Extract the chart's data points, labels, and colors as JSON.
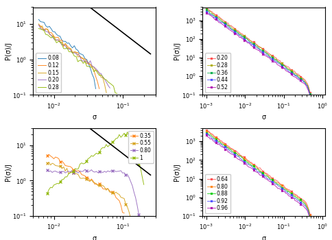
{
  "panel_tl": {
    "legend_labels": [
      "0.08",
      "0.12",
      "0.15",
      "0.20",
      "0.28"
    ],
    "colors": [
      "#1f77b4",
      "#ff7f0e",
      "#d4a017",
      "#9467bd",
      "#8db600"
    ],
    "xlim": [
      0.005,
      0.3
    ],
    "ylim": [
      0.1,
      30
    ],
    "xlabel": "σ",
    "ylabel": "P(σ)/J"
  },
  "panel_tr": {
    "legend_labels": [
      "0.20",
      "0.28",
      "0.36",
      "0.44",
      "0.52"
    ],
    "colors": [
      "#ff4444",
      "#aaaa00",
      "#00aa44",
      "#4444ff",
      "#aa00aa"
    ],
    "xlim": [
      0.0008,
      1.2
    ],
    "ylim": [
      0.1,
      5000
    ],
    "xlabel": "σ",
    "ylabel": "P(σ)/J"
  },
  "panel_bl": {
    "legend_labels": [
      "0.35",
      "0.55",
      "0.80",
      "1"
    ],
    "colors": [
      "#ff7f0e",
      "#d4a017",
      "#9467bd",
      "#8db600"
    ],
    "xlim": [
      0.005,
      0.3
    ],
    "ylim": [
      0.1,
      30
    ],
    "xlabel": "σ",
    "ylabel": "P(σ)/J"
  },
  "panel_br": {
    "legend_labels": [
      "0.64",
      "0.80",
      "0.88",
      "0.92",
      "0.96"
    ],
    "colors": [
      "#ff4444",
      "#ff7f0e",
      "#00cc00",
      "#4444ff",
      "#aa00aa"
    ],
    "xlim": [
      0.0008,
      1.2
    ],
    "ylim": [
      0.1,
      5000
    ],
    "xlabel": "σ",
    "ylabel": "P(σ)/J"
  }
}
